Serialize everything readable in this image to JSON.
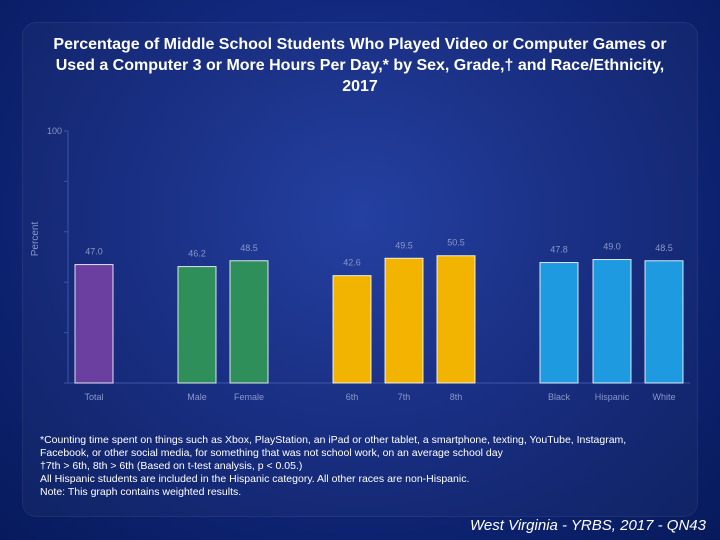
{
  "title": "Percentage of Middle School Students Who Played Video or Computer Games or Used a Computer 3 or More Hours Per Day,* by Sex, Grade,† and Race/Ethnicity, 2017",
  "source": "West Virginia - YRBS, 2017 - QN43",
  "footnotes": [
    "*Counting time spent on things such as Xbox, PlayStation, an iPad or other tablet, a smartphone, texting, YouTube, Instagram,",
    "Facebook, or other social media, for something that was not school work, on an average school day",
    "†7th > 6th, 8th > 6th (Based on t-test analysis, p < 0.05.)",
    "All Hispanic students are included in the Hispanic category.  All other races are non-Hispanic.",
    "Note: This graph contains weighted results."
  ],
  "colors": {
    "background": "#12297f",
    "total": "#6a3fa0",
    "sex": "#2f8f5b",
    "grade": "#f2b400",
    "race": "#1e9be0",
    "text": "#ffffff",
    "axis_text": "#8a97c8"
  },
  "chart_data": {
    "type": "bar",
    "title": "Percentage of Middle School Students Who Played Video or Computer Games or Used a Computer 3 or More Hours Per Day,* by Sex, Grade,† and Race/Ethnicity, 2017",
    "ylabel": "Percent",
    "xlabel": "",
    "ylim": [
      0,
      100
    ],
    "yticks": [
      0,
      20,
      40,
      60,
      80,
      100
    ],
    "ytick_labels": [
      "",
      "",
      "",
      "",
      "",
      "100"
    ],
    "grid": false,
    "categories": [
      "Total",
      "Male",
      "Female",
      "6th",
      "7th",
      "8th",
      "Black",
      "Hispanic",
      "White"
    ],
    "groups": [
      "total",
      "sex",
      "sex",
      "grade",
      "grade",
      "grade",
      "race",
      "race",
      "race"
    ],
    "values": [
      47.0,
      46.2,
      48.5,
      42.6,
      49.5,
      50.5,
      47.8,
      49.0,
      48.5
    ],
    "data_labels": [
      "47.0",
      "46.2",
      "48.5",
      "42.6",
      "49.5",
      "50.5",
      "47.8",
      "49.0",
      "48.5"
    ]
  }
}
